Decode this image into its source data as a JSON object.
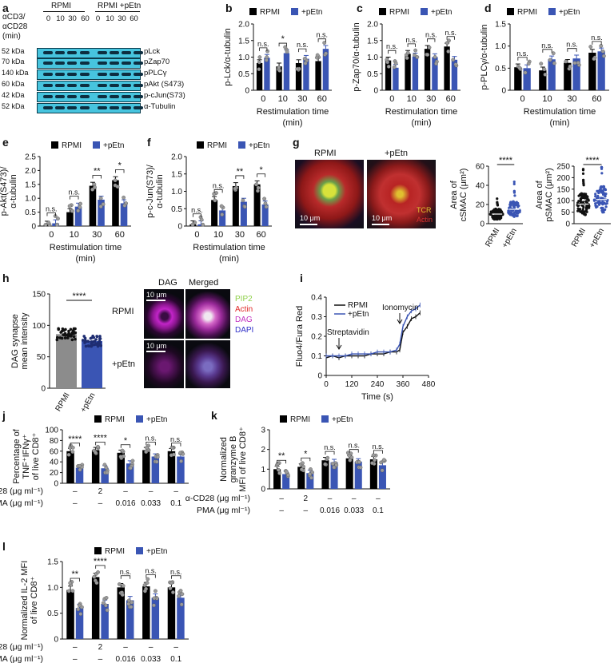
{
  "panel_labels": {
    "a": "a",
    "b": "b",
    "c": "c",
    "d": "d",
    "e": "e",
    "f": "f",
    "g": "g",
    "h": "h",
    "i": "i",
    "j": "j",
    "k": "k",
    "l": "l"
  },
  "legend": {
    "rpmi": "RPMI",
    "petn": "+pEtn"
  },
  "colors": {
    "rpmi": "#000000",
    "petn": "#3a55b4",
    "blot": "#47c4de"
  },
  "blot": {
    "stim_label": [
      "αCD3/",
      "αCD28",
      "(min)"
    ],
    "group_rpmi": "RPMI",
    "group_petn": "RPMI +pEtn",
    "times": [
      "0",
      "10",
      "30",
      "60",
      "0",
      "10",
      "30",
      "60"
    ],
    "rows": [
      {
        "kda": "52 kDa",
        "name": "pLck"
      },
      {
        "kda": "70 kDa",
        "name": "pZap70"
      },
      {
        "kda": "140 kDa",
        "name": "pPLCγ"
      },
      {
        "kda": "60 kDa",
        "name": "pAkt (S473)"
      },
      {
        "kda": "42 kDa",
        "name": "p-cJun(S73)"
      },
      {
        "kda": "52 kDa",
        "name": "α-Tubulin"
      }
    ]
  },
  "restim": {
    "xlabel": "Restimulation time",
    "xunit": "(min)",
    "categories": [
      "0",
      "10",
      "30",
      "60"
    ]
  },
  "g": {
    "rpmi": "RPMI",
    "petn": "+pEtn",
    "scale": "10 μm",
    "tcr": "TCR",
    "actin": "Actin",
    "c_ylabel": [
      "Area of",
      "cSMAC (μm²)"
    ],
    "p_ylabel": [
      "Area of",
      "pSMAC (μm²)"
    ],
    "sig": "****"
  },
  "h": {
    "ylabel": [
      "DAG synapse",
      "mean intensity"
    ],
    "sig": "****",
    "dag": "DAG",
    "merged": "Merged",
    "rpmi": "RPMI",
    "petn": "+pEtn",
    "scale": "10 μm",
    "legend": [
      "PIP2",
      "Actin",
      "DAG",
      "DAPI"
    ]
  },
  "i": {
    "ylabel": "Fluo4/Fura Red",
    "xlabel": "Time (s)",
    "strep": "Streptavidin",
    "iono": "Ionomycin"
  },
  "cond": {
    "cd28": "α-CD28 (μg ml⁻¹)",
    "pma": "PMA (μg ml⁻¹)",
    "cd28_vals": [
      "–",
      "2",
      "–",
      "–",
      "–"
    ],
    "pma_vals": [
      "–",
      "–",
      "0.016",
      "0.033",
      "0.1"
    ]
  },
  "chart_data": [
    {
      "id": "b",
      "type": "bar",
      "ylabel": "p-Lck/α-tubulin",
      "categories": [
        "0",
        "10",
        "30",
        "60"
      ],
      "ylim": [
        0,
        2.0
      ],
      "yticks": [
        "0",
        "0.5",
        "1.0",
        "1.5",
        "2.0"
      ],
      "series": [
        {
          "name": "RPMI",
          "values": [
            0.82,
            0.72,
            0.82,
            0.88
          ]
        },
        {
          "name": "+pEtn",
          "values": [
            0.98,
            1.12,
            0.95,
            1.25
          ]
        }
      ],
      "sig": [
        "n.s.",
        "*",
        "n.s.",
        "n.s."
      ]
    },
    {
      "id": "c",
      "type": "bar",
      "ylabel": "p-Zap70/α-tubulin",
      "categories": [
        "0",
        "10",
        "30",
        "60"
      ],
      "ylim": [
        0,
        2.0
      ],
      "yticks": [
        "0",
        "0.5",
        "1.0",
        "1.5",
        "2.0"
      ],
      "series": [
        {
          "name": "RPMI",
          "values": [
            0.9,
            1.1,
            1.25,
            1.32
          ]
        },
        {
          "name": "+pEtn",
          "values": [
            0.68,
            1.02,
            1.0,
            0.92
          ]
        }
      ],
      "sig": [
        "n.s.",
        "n.s.",
        "n.s.",
        "n.s."
      ]
    },
    {
      "id": "d",
      "type": "bar",
      "ylabel": "p-PLCγ/α-tubulin",
      "categories": [
        "0",
        "10",
        "30",
        "60"
      ],
      "ylim": [
        0,
        1.5
      ],
      "yticks": [
        "0",
        "0.5",
        "1.0",
        "1.5"
      ],
      "series": [
        {
          "name": "RPMI",
          "values": [
            0.52,
            0.45,
            0.62,
            0.85
          ]
        },
        {
          "name": "+pEtn",
          "values": [
            0.5,
            0.7,
            0.72,
            0.88
          ]
        }
      ],
      "sig": [
        "n.s.",
        "n.s.",
        "n.s.",
        "n.s."
      ]
    },
    {
      "id": "e",
      "type": "bar",
      "ylabel": "p-Akt(S473)/ α-tubulin",
      "categories": [
        "0",
        "10",
        "30",
        "60"
      ],
      "ylim": [
        0,
        2.5
      ],
      "yticks": [
        "0",
        "0.5",
        "1.0",
        "1.5",
        "2.0",
        "2.5"
      ],
      "series": [
        {
          "name": "RPMI",
          "values": [
            0.05,
            0.5,
            1.45,
            1.65
          ]
        },
        {
          "name": "+pEtn",
          "values": [
            0.1,
            0.7,
            0.95,
            0.82
          ]
        }
      ],
      "sig": [
        "n.s.",
        "n.s.",
        "**",
        "*"
      ]
    },
    {
      "id": "f",
      "type": "bar",
      "ylabel": "p-c-Jun(S73)/ α-tubulin",
      "categories": [
        "0",
        "10",
        "30",
        "60"
      ],
      "ylim": [
        0,
        2.0
      ],
      "yticks": [
        "0",
        "0.5",
        "1.0",
        "1.5",
        "2.0"
      ],
      "series": [
        {
          "name": "RPMI",
          "values": [
            0.05,
            0.75,
            1.15,
            1.2
          ]
        },
        {
          "name": "+pEtn",
          "values": [
            0.05,
            0.45,
            0.7,
            0.62
          ]
        }
      ],
      "sig": [
        "n.s.",
        "n.s.",
        "**",
        "*"
      ]
    },
    {
      "id": "g1",
      "type": "scatter",
      "categories": [
        "RPMI",
        "+pEtn"
      ],
      "ylim": [
        0,
        60
      ],
      "yticks": [
        "0",
        "20",
        "40",
        "60"
      ],
      "values": [
        10,
        15
      ]
    },
    {
      "id": "g2",
      "type": "scatter",
      "categories": [
        "RPMI",
        "+pEtn"
      ],
      "ylim": [
        0,
        250
      ],
      "yticks": [
        "0",
        "50",
        "100",
        "150",
        "200",
        "250"
      ],
      "values": [
        85,
        105
      ]
    },
    {
      "id": "h",
      "type": "bar",
      "categories": [
        "RPMI",
        "+pEtn"
      ],
      "ylim": [
        0,
        150
      ],
      "yticks": [
        "0",
        "50",
        "100",
        "150"
      ],
      "values": [
        86,
        75
      ]
    },
    {
      "id": "i",
      "type": "line",
      "xlim": [
        0,
        480
      ],
      "xticks": [
        "0",
        "120",
        "240",
        "360",
        "480"
      ],
      "ylim": [
        0,
        0.4
      ],
      "yticks": [
        "0",
        "0.1",
        "0.2",
        "0.3",
        "0.4"
      ],
      "x": [
        0,
        30,
        60,
        90,
        120,
        150,
        180,
        210,
        240,
        270,
        300,
        330,
        345,
        360,
        380,
        400,
        420,
        440
      ],
      "series": [
        {
          "name": "RPMI",
          "values": [
            0.09,
            0.1,
            0.09,
            0.1,
            0.1,
            0.1,
            0.1,
            0.11,
            0.11,
            0.11,
            0.12,
            0.12,
            0.13,
            0.22,
            0.25,
            0.29,
            0.3,
            0.32
          ]
        },
        {
          "name": "+pEtn",
          "values": [
            0.1,
            0.1,
            0.1,
            0.1,
            0.11,
            0.11,
            0.11,
            0.11,
            0.12,
            0.12,
            0.12,
            0.13,
            0.16,
            0.25,
            0.3,
            0.33,
            0.34,
            0.36
          ]
        }
      ]
    },
    {
      "id": "j",
      "type": "bar",
      "ylabel": "Percentage of TNF⁺IFNγ⁺ of live CD8⁺",
      "ylim": [
        0,
        100
      ],
      "yticks": [
        "0",
        "20",
        "40",
        "60",
        "80",
        "100"
      ],
      "series": [
        {
          "name": "RPMI",
          "values": [
            60,
            62,
            57,
            62,
            60
          ]
        },
        {
          "name": "+pEtn",
          "values": [
            29,
            28,
            37,
            50,
            50
          ]
        }
      ],
      "sig": [
        "****",
        "****",
        "*",
        "n.s.",
        "n.s."
      ]
    },
    {
      "id": "k",
      "type": "bar",
      "ylabel": "Normalized granzyme B MFI of live CD8⁺",
      "ylim": [
        0,
        3
      ],
      "yticks": [
        "0",
        "1",
        "2",
        "3"
      ],
      "series": [
        {
          "name": "RPMI",
          "values": [
            1.0,
            1.12,
            1.45,
            1.55,
            1.5
          ]
        },
        {
          "name": "+pEtn",
          "values": [
            0.75,
            0.8,
            1.35,
            1.38,
            1.2
          ]
        }
      ],
      "sig": [
        "**",
        "*",
        "n.s.",
        "n.s.",
        "n.s."
      ]
    },
    {
      "id": "l",
      "type": "bar",
      "ylabel": "Normalized IL-2 MFI of live CD8⁺",
      "ylim": [
        0,
        1.5
      ],
      "yticks": [
        "0",
        "0.5",
        "1.0",
        "1.5"
      ],
      "series": [
        {
          "name": "RPMI",
          "values": [
            0.95,
            1.2,
            1.0,
            1.02,
            1.0
          ]
        },
        {
          "name": "+pEtn",
          "values": [
            0.6,
            0.68,
            0.75,
            0.8,
            0.8
          ]
        }
      ],
      "sig": [
        "**",
        "****",
        "n.s.",
        "n.s.",
        "n.s."
      ]
    }
  ]
}
